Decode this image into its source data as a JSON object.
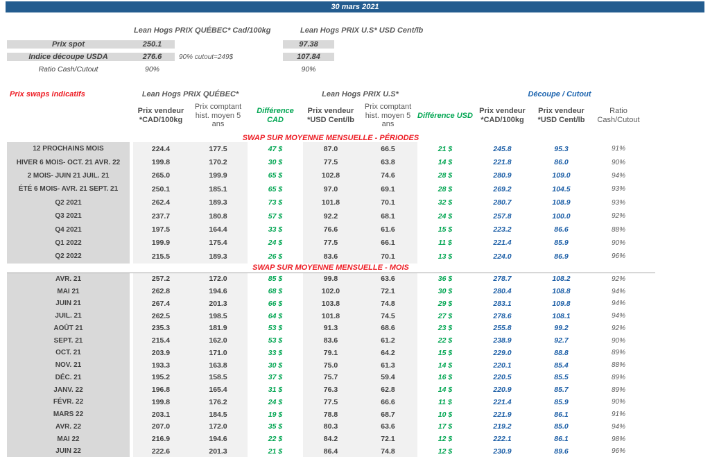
{
  "title_bar": {
    "date": "30 mars 2021"
  },
  "colors": {
    "bar_blue": "#235c8f",
    "accent_red": "#ed1c24",
    "accent_green": "#00a551",
    "accent_blue": "#1a5da6",
    "label_gray": "#d9d9d9",
    "column_gray": "#f1f1f1"
  },
  "spot_section": {
    "quebec_header": "Lean Hogs PRIX QUÉBEC* Cad/100kg",
    "us_header": "Lean Hogs PRIX U.S* USD Cent/lb",
    "prix_spot": {
      "label": "Prix spot",
      "cad": "250.1",
      "usd": "97.38"
    },
    "indice": {
      "label": "Indice découpe USDA",
      "cad": "276.6",
      "usd": "107.84",
      "note": "90% cutout=249$"
    },
    "ratio": {
      "label": "Ratio Cash/Cutout",
      "cad": "90%",
      "usd": "90%"
    }
  },
  "swaps": {
    "title": "Prix swaps indicatifs",
    "quebec_group": "Lean Hogs PRIX QUÉBEC*",
    "us_group": "Lean Hogs PRIX U.S*",
    "cutout_group": "Découpe / Cutout",
    "col_headers": {
      "vendeur_cad": "Prix vendeur *CAD/100kg",
      "hist_cad": "Prix comptant hist. moyen 5 ans",
      "diff_cad": "Différence CAD",
      "vendeur_usd": "Prix vendeur *USD Cent/lb",
      "hist_usd": "Prix comptant hist. moyen 5 ans",
      "diff_usd": "Différence USD",
      "cut_cad": "Prix vendeur *CAD/100kg",
      "cut_usd": "Prix vendeur *USD Cent/lb",
      "ratio": "Ratio Cash/Cutout"
    },
    "periods_title": "SWAP SUR MOYENNE MENSUELLE - PÉRIODES",
    "months_title": "SWAP SUR MOYENNE MENSUELLE - MOIS",
    "periods": [
      {
        "label": "12 PROCHAINS MOIS",
        "cad_vendeur": "224.4",
        "cad_hist": "177.5",
        "diff_cad": "47 $",
        "usd_vendeur": "87.0",
        "usd_hist": "66.5",
        "diff_usd": "21 $",
        "cut_cad": "245.8",
        "cut_usd": "95.3",
        "ratio": "91%"
      },
      {
        "label": "HIVER 6 MOIS- OCT. 21 AVR. 22",
        "cad_vendeur": "199.8",
        "cad_hist": "170.2",
        "diff_cad": "30 $",
        "usd_vendeur": "77.5",
        "usd_hist": "63.8",
        "diff_usd": "14 $",
        "cut_cad": "221.8",
        "cut_usd": "86.0",
        "ratio": "90%"
      },
      {
        "label": "2 MOIS- JUIN 21 JUIL. 21",
        "cad_vendeur": "265.0",
        "cad_hist": "199.9",
        "diff_cad": "65 $",
        "usd_vendeur": "102.8",
        "usd_hist": "74.6",
        "diff_usd": "28 $",
        "cut_cad": "280.9",
        "cut_usd": "109.0",
        "ratio": "94%"
      },
      {
        "label": "ÉTÉ 6 MOIS- AVR. 21 SEPT. 21",
        "cad_vendeur": "250.1",
        "cad_hist": "185.1",
        "diff_cad": "65 $",
        "usd_vendeur": "97.0",
        "usd_hist": "69.1",
        "diff_usd": "28 $",
        "cut_cad": "269.2",
        "cut_usd": "104.5",
        "ratio": "93%"
      },
      {
        "label": "Q2 2021",
        "cad_vendeur": "262.4",
        "cad_hist": "189.3",
        "diff_cad": "73 $",
        "usd_vendeur": "101.8",
        "usd_hist": "70.1",
        "diff_usd": "32 $",
        "cut_cad": "280.7",
        "cut_usd": "108.9",
        "ratio": "93%"
      },
      {
        "label": "Q3 2021",
        "cad_vendeur": "237.7",
        "cad_hist": "180.8",
        "diff_cad": "57 $",
        "usd_vendeur": "92.2",
        "usd_hist": "68.1",
        "diff_usd": "24 $",
        "cut_cad": "257.8",
        "cut_usd": "100.0",
        "ratio": "92%"
      },
      {
        "label": "Q4 2021",
        "cad_vendeur": "197.5",
        "cad_hist": "164.4",
        "diff_cad": "33 $",
        "usd_vendeur": "76.6",
        "usd_hist": "61.6",
        "diff_usd": "15 $",
        "cut_cad": "223.2",
        "cut_usd": "86.6",
        "ratio": "88%"
      },
      {
        "label": "Q1 2022",
        "cad_vendeur": "199.9",
        "cad_hist": "175.4",
        "diff_cad": "24 $",
        "usd_vendeur": "77.5",
        "usd_hist": "66.1",
        "diff_usd": "11 $",
        "cut_cad": "221.4",
        "cut_usd": "85.9",
        "ratio": "90%"
      },
      {
        "label": "Q2 2022",
        "cad_vendeur": "215.5",
        "cad_hist": "189.3",
        "diff_cad": "26 $",
        "usd_vendeur": "83.6",
        "usd_hist": "70.1",
        "diff_usd": "13 $",
        "cut_cad": "224.0",
        "cut_usd": "86.9",
        "ratio": "96%"
      }
    ],
    "months": [
      {
        "label": "AVR. 21",
        "cad_vendeur": "257.2",
        "cad_hist": "172.0",
        "diff_cad": "85 $",
        "usd_vendeur": "99.8",
        "usd_hist": "63.6",
        "diff_usd": "36 $",
        "cut_cad": "278.7",
        "cut_usd": "108.2",
        "ratio": "92%"
      },
      {
        "label": "MAI 21",
        "cad_vendeur": "262.8",
        "cad_hist": "194.6",
        "diff_cad": "68 $",
        "usd_vendeur": "102.0",
        "usd_hist": "72.1",
        "diff_usd": "30 $",
        "cut_cad": "280.4",
        "cut_usd": "108.8",
        "ratio": "94%"
      },
      {
        "label": "JUIN 21",
        "cad_vendeur": "267.4",
        "cad_hist": "201.3",
        "diff_cad": "66 $",
        "usd_vendeur": "103.8",
        "usd_hist": "74.8",
        "diff_usd": "29 $",
        "cut_cad": "283.1",
        "cut_usd": "109.8",
        "ratio": "94%"
      },
      {
        "label": "JUIL. 21",
        "cad_vendeur": "262.5",
        "cad_hist": "198.5",
        "diff_cad": "64 $",
        "usd_vendeur": "101.8",
        "usd_hist": "74.5",
        "diff_usd": "27 $",
        "cut_cad": "278.6",
        "cut_usd": "108.1",
        "ratio": "94%"
      },
      {
        "label": "AOÛT 21",
        "cad_vendeur": "235.3",
        "cad_hist": "181.9",
        "diff_cad": "53 $",
        "usd_vendeur": "91.3",
        "usd_hist": "68.6",
        "diff_usd": "23 $",
        "cut_cad": "255.8",
        "cut_usd": "99.2",
        "ratio": "92%"
      },
      {
        "label": "SEPT. 21",
        "cad_vendeur": "215.4",
        "cad_hist": "162.0",
        "diff_cad": "53 $",
        "usd_vendeur": "83.6",
        "usd_hist": "61.2",
        "diff_usd": "22 $",
        "cut_cad": "238.9",
        "cut_usd": "92.7",
        "ratio": "90%"
      },
      {
        "label": "OCT. 21",
        "cad_vendeur": "203.9",
        "cad_hist": "171.0",
        "diff_cad": "33 $",
        "usd_vendeur": "79.1",
        "usd_hist": "64.2",
        "diff_usd": "15 $",
        "cut_cad": "229.0",
        "cut_usd": "88.8",
        "ratio": "89%"
      },
      {
        "label": "NOV. 21",
        "cad_vendeur": "193.3",
        "cad_hist": "163.8",
        "diff_cad": "30 $",
        "usd_vendeur": "75.0",
        "usd_hist": "61.3",
        "diff_usd": "14 $",
        "cut_cad": "220.1",
        "cut_usd": "85.4",
        "ratio": "88%"
      },
      {
        "label": "DÉC. 21",
        "cad_vendeur": "195.2",
        "cad_hist": "158.5",
        "diff_cad": "37 $",
        "usd_vendeur": "75.7",
        "usd_hist": "59.4",
        "diff_usd": "16 $",
        "cut_cad": "220.5",
        "cut_usd": "85.5",
        "ratio": "89%"
      },
      {
        "label": "JANV. 22",
        "cad_vendeur": "196.8",
        "cad_hist": "165.4",
        "diff_cad": "31 $",
        "usd_vendeur": "76.3",
        "usd_hist": "62.8",
        "diff_usd": "14 $",
        "cut_cad": "220.9",
        "cut_usd": "85.7",
        "ratio": "89%"
      },
      {
        "label": "FÉVR. 22",
        "cad_vendeur": "199.8",
        "cad_hist": "176.2",
        "diff_cad": "24 $",
        "usd_vendeur": "77.5",
        "usd_hist": "66.6",
        "diff_usd": "11 $",
        "cut_cad": "221.4",
        "cut_usd": "85.9",
        "ratio": "90%"
      },
      {
        "label": "MARS 22",
        "cad_vendeur": "203.1",
        "cad_hist": "184.5",
        "diff_cad": "19 $",
        "usd_vendeur": "78.8",
        "usd_hist": "68.7",
        "diff_usd": "10 $",
        "cut_cad": "221.9",
        "cut_usd": "86.1",
        "ratio": "91%"
      },
      {
        "label": "AVR. 22",
        "cad_vendeur": "207.0",
        "cad_hist": "172.0",
        "diff_cad": "35 $",
        "usd_vendeur": "80.3",
        "usd_hist": "63.6",
        "diff_usd": "17 $",
        "cut_cad": "219.2",
        "cut_usd": "85.0",
        "ratio": "94%"
      },
      {
        "label": "MAI 22",
        "cad_vendeur": "216.9",
        "cad_hist": "194.6",
        "diff_cad": "22 $",
        "usd_vendeur": "84.2",
        "usd_hist": "72.1",
        "diff_usd": "12 $",
        "cut_cad": "222.1",
        "cut_usd": "86.1",
        "ratio": "98%"
      },
      {
        "label": "JUIN 22",
        "cad_vendeur": "222.6",
        "cad_hist": "201.3",
        "diff_cad": "21 $",
        "usd_vendeur": "86.4",
        "usd_hist": "74.8",
        "diff_usd": "12 $",
        "cut_cad": "230.9",
        "cut_usd": "89.6",
        "ratio": "96%"
      }
    ]
  }
}
